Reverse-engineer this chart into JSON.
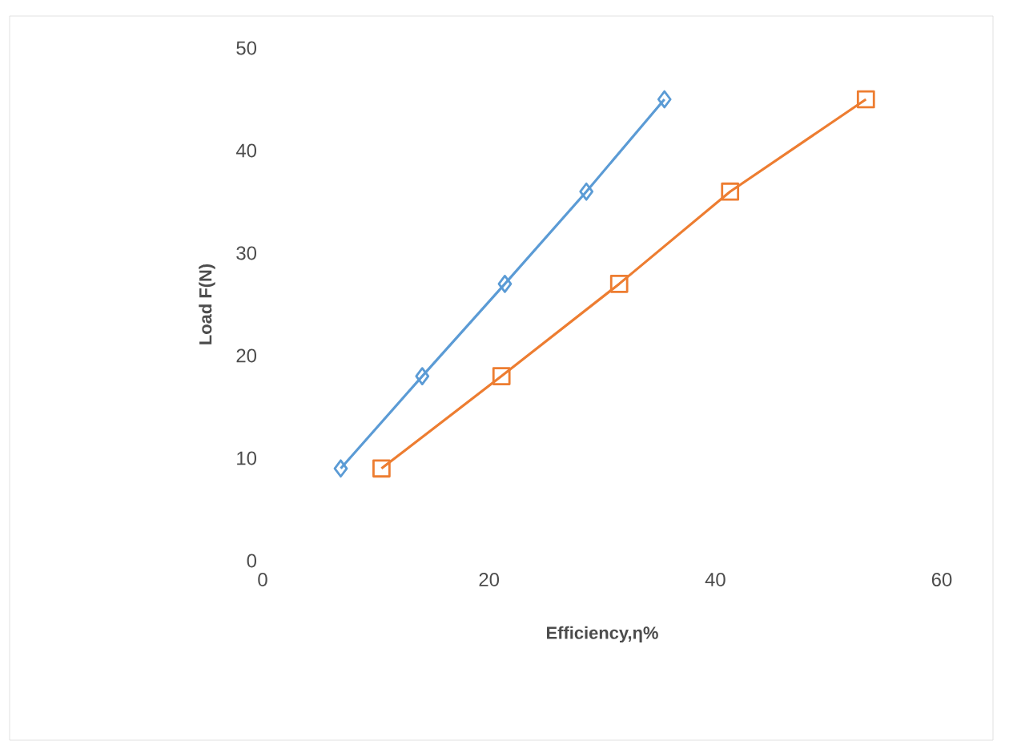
{
  "chart_data": {
    "type": "line",
    "xlabel": "Efficiency,η%",
    "ylabel": "Load F(N)",
    "xlim": [
      0,
      60
    ],
    "ylim": [
      0,
      50
    ],
    "xticks": [
      0,
      20,
      40,
      60
    ],
    "yticks": [
      0,
      10,
      20,
      30,
      40,
      50
    ],
    "grid": false,
    "line_style": "solid",
    "series": [
      {
        "color": "#5b9bd5",
        "marker": "diamond",
        "x": [
          6.9,
          14.1,
          21.4,
          28.6,
          35.5
        ],
        "values": [
          9,
          18,
          27,
          36,
          45
        ]
      },
      {
        "color": "#ed7d31",
        "marker": "square",
        "x": [
          10.5,
          21.1,
          31.5,
          41.3,
          53.3
        ],
        "values": [
          9,
          18,
          27,
          36,
          45
        ]
      }
    ]
  }
}
